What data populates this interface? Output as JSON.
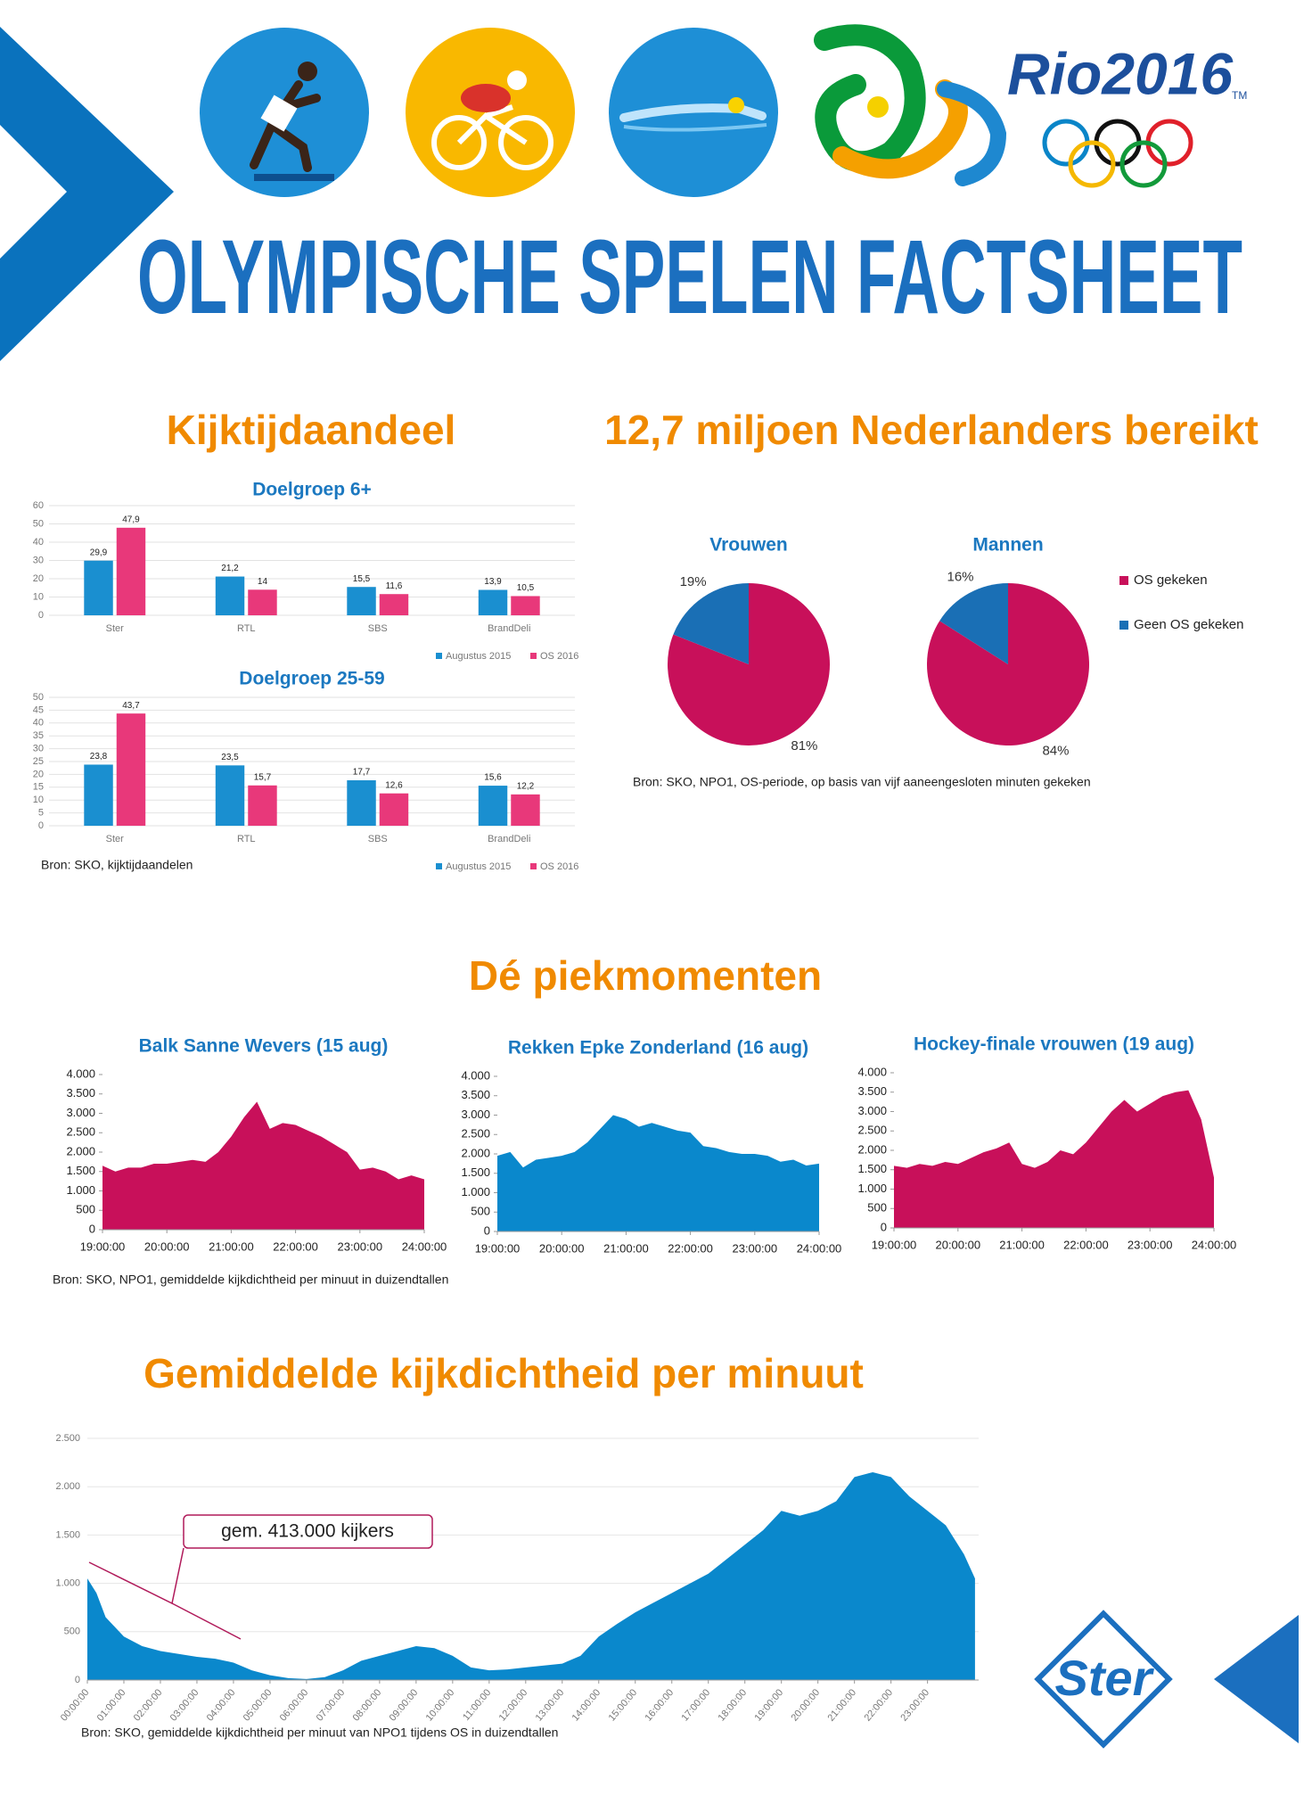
{
  "header": {
    "title": "OLYMPISCHE SPELEN FACTSHEET",
    "logo_text": "Rio2016",
    "tm": "TM",
    "brand": "Ster"
  },
  "sections": [
    {
      "heading": "Kijktijdaandeel",
      "source": "Bron: SKO, kijktijdaandelen"
    },
    {
      "heading": "12,7 miljoen Nederlanders bereikt",
      "source": "Bron: SKO, NPO1, OS-periode, op basis van vijf aaneengesloten minuten gekeken"
    },
    {
      "heading": "Dé piekmomenten",
      "source": "Bron: SKO, NPO1, gemiddelde kijkdichtheid per minuut in duizendtallen"
    },
    {
      "heading": "Gemiddelde kijkdichtheid per minuut",
      "source": "Bron: SKO, gemiddelde kijkdichtheid per minuut van NPO1 tijdens OS in duizendtallen"
    }
  ],
  "chart_data": [
    {
      "type": "bar",
      "title": "Doelgroep 6+",
      "categories": [
        "Ster",
        "RTL",
        "SBS",
        "BrandDeli"
      ],
      "series": [
        {
          "name": "Augustus 2015",
          "color": "#1a8fd0",
          "values": [
            29.9,
            21.2,
            15.5,
            13.9
          ],
          "value_labels": [
            "29,9",
            "21,2",
            "15,5",
            "13,9"
          ]
        },
        {
          "name": "OS 2016",
          "color": "#e8387a",
          "values": [
            47.9,
            14,
            11.6,
            10.5
          ],
          "value_labels": [
            "47,9",
            "14",
            "11,6",
            "10,5"
          ]
        }
      ],
      "ylim": [
        0,
        60
      ],
      "yticks": [
        0,
        10,
        20,
        30,
        40,
        50,
        60
      ],
      "grid": true,
      "legend": "bottom-right"
    },
    {
      "type": "bar",
      "title": "Doelgroep 25-59",
      "categories": [
        "Ster",
        "RTL",
        "SBS",
        "BrandDeli"
      ],
      "series": [
        {
          "name": "Augustus 2015",
          "color": "#1a8fd0",
          "values": [
            23.8,
            23.5,
            17.7,
            15.6
          ],
          "value_labels": [
            "23,8",
            "23,5",
            "17,7",
            "15,6"
          ]
        },
        {
          "name": "OS 2016",
          "color": "#e8387a",
          "values": [
            43.7,
            15.7,
            12.6,
            12.2
          ],
          "value_labels": [
            "43,7",
            "15,7",
            "12,6",
            "12,2"
          ]
        }
      ],
      "ylim": [
        0,
        50
      ],
      "yticks": [
        0,
        5,
        10,
        15,
        20,
        25,
        30,
        35,
        40,
        45,
        50
      ],
      "grid": true,
      "legend": "bottom-right"
    },
    {
      "type": "pie",
      "categories": [
        "OS gekeken",
        "Geen OS gekeken"
      ],
      "colors": [
        "#c8105a",
        "#1a6fb5"
      ],
      "legend": "right",
      "pies": [
        {
          "title": "Vrouwen",
          "values": [
            81,
            19
          ],
          "value_labels": [
            "81%",
            "19%"
          ]
        },
        {
          "title": "Mannen",
          "values": [
            84,
            16
          ],
          "value_labels": [
            "84%",
            "16%"
          ]
        }
      ]
    },
    {
      "type": "area",
      "title": "Balk Sanne Wevers (15 aug)",
      "color": "#c8105a",
      "x": [
        19,
        19.2,
        19.4,
        19.6,
        19.8,
        20,
        20.2,
        20.4,
        20.6,
        20.8,
        21,
        21.2,
        21.4,
        21.6,
        21.8,
        22,
        22.2,
        22.4,
        22.6,
        22.8,
        23,
        23.2,
        23.4,
        23.6,
        23.8,
        24
      ],
      "values": [
        1650,
        1500,
        1600,
        1600,
        1700,
        1700,
        1750,
        1800,
        1750,
        2000,
        2400,
        2900,
        3300,
        2600,
        2750,
        2700,
        2550,
        2400,
        2200,
        2000,
        1550,
        1600,
        1500,
        1300,
        1400,
        1300
      ],
      "xlim": [
        19,
        24
      ],
      "xticks": [
        {
          "value": 19,
          "label": "19:00:00"
        },
        {
          "value": 20,
          "label": "20:00:00"
        },
        {
          "value": 21,
          "label": "21:00:00"
        },
        {
          "value": 22,
          "label": "22:00:00"
        },
        {
          "value": 23,
          "label": "23:00:00"
        },
        {
          "value": 24,
          "label": "24:00:00"
        }
      ],
      "ylim": [
        0,
        4000
      ],
      "yticks": [
        0,
        500,
        {
          "value": 1000,
          "label": "1.000"
        },
        {
          "value": 1500,
          "label": "1.500"
        },
        {
          "value": 2000,
          "label": "2.000"
        },
        {
          "value": 2500,
          "label": "2.500"
        },
        {
          "value": 3000,
          "label": "3.000"
        },
        {
          "value": 3500,
          "label": "3.500"
        },
        {
          "value": 4000,
          "label": "4.000"
        }
      ]
    },
    {
      "type": "area",
      "title": "Rekken Epke Zonderland (16 aug)",
      "color": "#0a88cc",
      "x": [
        19,
        19.2,
        19.4,
        19.6,
        19.8,
        20,
        20.2,
        20.4,
        20.6,
        20.8,
        21,
        21.2,
        21.4,
        21.6,
        21.8,
        22,
        22.2,
        22.4,
        22.6,
        22.8,
        23,
        23.2,
        23.4,
        23.6,
        23.8,
        24
      ],
      "values": [
        1950,
        2050,
        1650,
        1850,
        1900,
        1950,
        2050,
        2300,
        2650,
        3000,
        2900,
        2700,
        2800,
        2700,
        2600,
        2550,
        2200,
        2150,
        2050,
        2000,
        2000,
        1950,
        1800,
        1850,
        1700,
        1750
      ],
      "xlim": [
        19,
        24
      ],
      "xticks": [
        {
          "value": 19,
          "label": "19:00:00"
        },
        {
          "value": 20,
          "label": "20:00:00"
        },
        {
          "value": 21,
          "label": "21:00:00"
        },
        {
          "value": 22,
          "label": "22:00:00"
        },
        {
          "value": 23,
          "label": "23:00:00"
        },
        {
          "value": 24,
          "label": "24:00:00"
        }
      ],
      "ylim": [
        0,
        4000
      ],
      "yticks": [
        0,
        500,
        {
          "value": 1000,
          "label": "1.000"
        },
        {
          "value": 1500,
          "label": "1.500"
        },
        {
          "value": 2000,
          "label": "2.000"
        },
        {
          "value": 2500,
          "label": "2.500"
        },
        {
          "value": 3000,
          "label": "3.000"
        },
        {
          "value": 3500,
          "label": "3.500"
        },
        {
          "value": 4000,
          "label": "4.000"
        }
      ]
    },
    {
      "type": "area",
      "title": "Hockey-finale vrouwen (19 aug)",
      "color": "#c8105a",
      "x": [
        19,
        19.2,
        19.4,
        19.6,
        19.8,
        20,
        20.2,
        20.4,
        20.6,
        20.8,
        21,
        21.2,
        21.4,
        21.6,
        21.8,
        22,
        22.2,
        22.4,
        22.6,
        22.8,
        23,
        23.2,
        23.4,
        23.6,
        23.8,
        24
      ],
      "values": [
        1600,
        1550,
        1650,
        1600,
        1700,
        1650,
        1800,
        1950,
        2050,
        2200,
        1650,
        1550,
        1700,
        2000,
        1900,
        2200,
        2600,
        3000,
        3300,
        3000,
        3200,
        3400,
        3500,
        3550,
        2800,
        1300
      ],
      "xlim": [
        19,
        24
      ],
      "xticks": [
        {
          "value": 19,
          "label": "19:00:00"
        },
        {
          "value": 20,
          "label": "20:00:00"
        },
        {
          "value": 21,
          "label": "21:00:00"
        },
        {
          "value": 22,
          "label": "22:00:00"
        },
        {
          "value": 23,
          "label": "23:00:00"
        },
        {
          "value": 24,
          "label": "24:00:00"
        }
      ],
      "ylim": [
        0,
        4000
      ],
      "yticks": [
        0,
        500,
        {
          "value": 1000,
          "label": "1.000"
        },
        {
          "value": 1500,
          "label": "1.500"
        },
        {
          "value": 2000,
          "label": "2.000"
        },
        {
          "value": 2500,
          "label": "2.500"
        },
        {
          "value": 3000,
          "label": "3.000"
        },
        {
          "value": 3500,
          "label": "3.500"
        },
        {
          "value": 4000,
          "label": "4.000"
        }
      ]
    },
    {
      "type": "area",
      "color": "#0a88cc",
      "annotation": "gem. 413.000 kijkers",
      "grid": true,
      "x": [
        0,
        0.25,
        0.5,
        1,
        1.5,
        2,
        2.5,
        3,
        3.5,
        4,
        4.5,
        5,
        5.5,
        6,
        6.5,
        7,
        7.5,
        8,
        8.5,
        9,
        9.5,
        10,
        10.5,
        11,
        11.5,
        12,
        12.5,
        13,
        13.5,
        14,
        14.5,
        15,
        15.5,
        16,
        16.5,
        17,
        17.5,
        18,
        18.5,
        19,
        19.5,
        20,
        20.5,
        21,
        21.5,
        22,
        22.5,
        23,
        23.5,
        24,
        24.3
      ],
      "values": [
        1050,
        900,
        650,
        450,
        350,
        300,
        270,
        240,
        220,
        180,
        100,
        50,
        20,
        10,
        30,
        100,
        200,
        250,
        300,
        350,
        330,
        250,
        130,
        100,
        110,
        130,
        150,
        170,
        250,
        450,
        580,
        700,
        800,
        900,
        1000,
        1100,
        1250,
        1400,
        1550,
        1750,
        1700,
        1750,
        1850,
        2100,
        2150,
        2100,
        1900,
        1750,
        1600,
        1300,
        1050
      ],
      "xlim": [
        0,
        24.4
      ],
      "xticks": [
        {
          "value": 0,
          "label": "00:00:00"
        },
        {
          "value": 1,
          "label": "01:00:00"
        },
        {
          "value": 2,
          "label": "02:00:00"
        },
        {
          "value": 3,
          "label": "03:00:00"
        },
        {
          "value": 4,
          "label": "04:00:00"
        },
        {
          "value": 5,
          "label": "05:00:00"
        },
        {
          "value": 6,
          "label": "06:00:00"
        },
        {
          "value": 7,
          "label": "07:00:00"
        },
        {
          "value": 8,
          "label": "08:00:00"
        },
        {
          "value": 9,
          "label": "09:00:00"
        },
        {
          "value": 10,
          "label": "10:00:00"
        },
        {
          "value": 11,
          "label": "11:00:00"
        },
        {
          "value": 12,
          "label": "12:00:00"
        },
        {
          "value": 13,
          "label": "13:00:00"
        },
        {
          "value": 14,
          "label": "14:00:00"
        },
        {
          "value": 15,
          "label": "15:00:00"
        },
        {
          "value": 16,
          "label": "16:00:00"
        },
        {
          "value": 17,
          "label": "17:00:00"
        },
        {
          "value": 18,
          "label": "18:00:00"
        },
        {
          "value": 19,
          "label": "19:00:00"
        },
        {
          "value": 20,
          "label": "20:00:00"
        },
        {
          "value": 21,
          "label": "21:00:00"
        },
        {
          "value": 22,
          "label": "22:00:00"
        },
        {
          "value": 23,
          "label": "23:00:00"
        }
      ],
      "ylim": [
        0,
        2500
      ],
      "yticks": [
        0,
        500,
        {
          "value": 1000,
          "label": "1.000"
        },
        {
          "value": 1500,
          "label": "1.500"
        },
        {
          "value": 2000,
          "label": "2.000"
        },
        {
          "value": 2500,
          "label": "2.500"
        }
      ]
    }
  ]
}
